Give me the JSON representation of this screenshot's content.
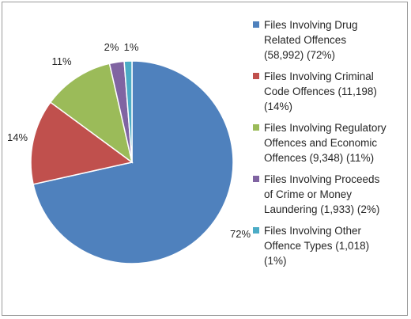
{
  "chart_data": {
    "type": "pie",
    "slices": [
      {
        "legend_lines": [
          "Files Involving Drug",
          "Related Offences",
          "(58,992) (72%)"
        ],
        "value": 58992,
        "percent_label": "72%",
        "color": "#4f81bd"
      },
      {
        "legend_lines": [
          "Files Involving Criminal",
          "Code Offences (11,198)",
          "(14%)"
        ],
        "value": 11198,
        "percent_label": "14%",
        "color": "#c0504d"
      },
      {
        "legend_lines": [
          "Files Involving Regulatory",
          "Offences and Economic",
          "Offences (9,348) (11%)"
        ],
        "value": 9348,
        "percent_label": "11%",
        "color": "#9bbb59"
      },
      {
        "legend_lines": [
          "Files Involving Proceeds",
          "of Crime or Money",
          "Laundering (1,933) (2%)"
        ],
        "value": 1933,
        "percent_label": "2%",
        "color": "#8064a2"
      },
      {
        "legend_lines": [
          "Files Involving Other",
          "Offence Types (1,018)",
          "(1%)"
        ],
        "value": 1018,
        "percent_label": "1%",
        "color": "#4bacc6"
      }
    ],
    "legend_placement": "right"
  }
}
